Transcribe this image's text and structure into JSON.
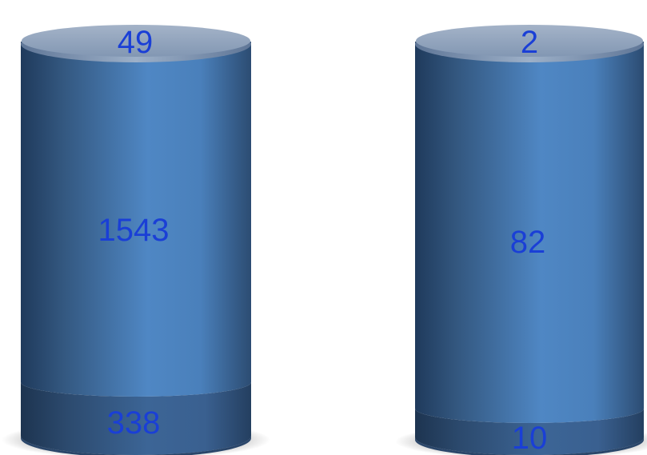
{
  "chart_data": {
    "type": "bar",
    "style": "stacked-cylinder",
    "label_color": "#1a3fd6",
    "colors": {
      "body_main": "#4c82be",
      "body_dark": "#2a4a70",
      "top_cap": "#8fa3be",
      "bottom_segment": "#3a5f8f"
    },
    "categories": [
      {
        "segments": [
          {
            "position": "bottom",
            "value": 338,
            "label": "338"
          },
          {
            "position": "middle",
            "value": 1543,
            "label": "1543"
          },
          {
            "position": "top",
            "value": 49,
            "label": "49"
          }
        ]
      },
      {
        "segments": [
          {
            "position": "bottom",
            "value": 10,
            "label": "10"
          },
          {
            "position": "middle",
            "value": 82,
            "label": "82"
          },
          {
            "position": "top",
            "value": 2,
            "label": "2"
          }
        ]
      }
    ]
  }
}
